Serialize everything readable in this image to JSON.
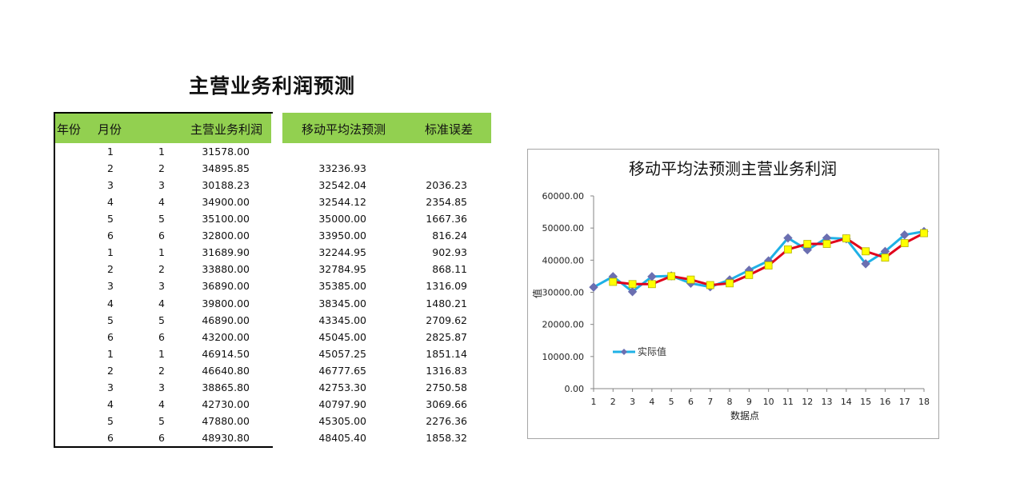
{
  "title": "主营业务利润预测",
  "headers": {
    "year": "年份",
    "month": "月份",
    "profit": "主营业务利润",
    "moving_avg": "移动平均法预测",
    "std_error": "标准误差"
  },
  "rows": [
    {
      "year": "1",
      "month": "1",
      "profit": "31578.00",
      "ma": "",
      "se": ""
    },
    {
      "year": "2",
      "month": "2",
      "profit": "34895.85",
      "ma": "33236.93",
      "se": ""
    },
    {
      "year": "3",
      "month": "3",
      "profit": "30188.23",
      "ma": "32542.04",
      "se": "2036.23"
    },
    {
      "year": "4",
      "month": "4",
      "profit": "34900.00",
      "ma": "32544.12",
      "se": "2354.85"
    },
    {
      "year": "5",
      "month": "5",
      "profit": "35100.00",
      "ma": "35000.00",
      "se": "1667.36"
    },
    {
      "year": "6",
      "month": "6",
      "profit": "32800.00",
      "ma": "33950.00",
      "se": "816.24"
    },
    {
      "year": "1",
      "month": "1",
      "profit": "31689.90",
      "ma": "32244.95",
      "se": "902.93"
    },
    {
      "year": "2",
      "month": "2",
      "profit": "33880.00",
      "ma": "32784.95",
      "se": "868.11"
    },
    {
      "year": "3",
      "month": "3",
      "profit": "36890.00",
      "ma": "35385.00",
      "se": "1316.09"
    },
    {
      "year": "4",
      "month": "4",
      "profit": "39800.00",
      "ma": "38345.00",
      "se": "1480.21"
    },
    {
      "year": "5",
      "month": "5",
      "profit": "46890.00",
      "ma": "43345.00",
      "se": "2709.62"
    },
    {
      "year": "6",
      "month": "6",
      "profit": "43200.00",
      "ma": "45045.00",
      "se": "2825.87"
    },
    {
      "year": "1",
      "month": "1",
      "profit": "46914.50",
      "ma": "45057.25",
      "se": "1851.14"
    },
    {
      "year": "2",
      "month": "2",
      "profit": "46640.80",
      "ma": "46777.65",
      "se": "1316.83"
    },
    {
      "year": "3",
      "month": "3",
      "profit": "38865.80",
      "ma": "42753.30",
      "se": "2750.58"
    },
    {
      "year": "4",
      "month": "4",
      "profit": "42730.00",
      "ma": "40797.90",
      "se": "3069.66"
    },
    {
      "year": "5",
      "month": "5",
      "profit": "47880.00",
      "ma": "45305.00",
      "se": "2276.36"
    },
    {
      "year": "6",
      "month": "6",
      "profit": "48930.80",
      "ma": "48405.40",
      "se": "1858.32"
    }
  ],
  "colors": {
    "header_bg": "#92d050",
    "actual_line": "#1fb1e6",
    "actual_marker": "#6b6fb1",
    "forecast_line": "#e0001b",
    "forecast_marker": "#ffff00"
  },
  "chart_data": {
    "type": "line",
    "title": "移动平均法预测主营业务利润",
    "xlabel": "数据点",
    "ylabel": "值",
    "x": [
      1,
      2,
      3,
      4,
      5,
      6,
      7,
      8,
      9,
      10,
      11,
      12,
      13,
      14,
      15,
      16,
      17,
      18
    ],
    "ylim": [
      0,
      60000
    ],
    "yticks": [
      "0.00",
      "10000.00",
      "20000.00",
      "30000.00",
      "40000.00",
      "50000.00",
      "60000.00"
    ],
    "legend_position": "left-middle",
    "series": [
      {
        "name": "实际值",
        "values": [
          31578.0,
          34895.85,
          30188.23,
          34900.0,
          35100.0,
          32800.0,
          31689.9,
          33880.0,
          36890.0,
          39800.0,
          46890.0,
          43200.0,
          46914.5,
          46640.8,
          38865.8,
          42730.0,
          47880.0,
          48930.8
        ]
      },
      {
        "values": [
          null,
          33236.93,
          32542.04,
          32544.12,
          35000.0,
          33950.0,
          32244.95,
          32784.95,
          35385.0,
          38345.0,
          43345.0,
          45045.0,
          45057.25,
          46777.65,
          42753.3,
          40797.9,
          45305.0,
          48405.4
        ]
      }
    ]
  }
}
